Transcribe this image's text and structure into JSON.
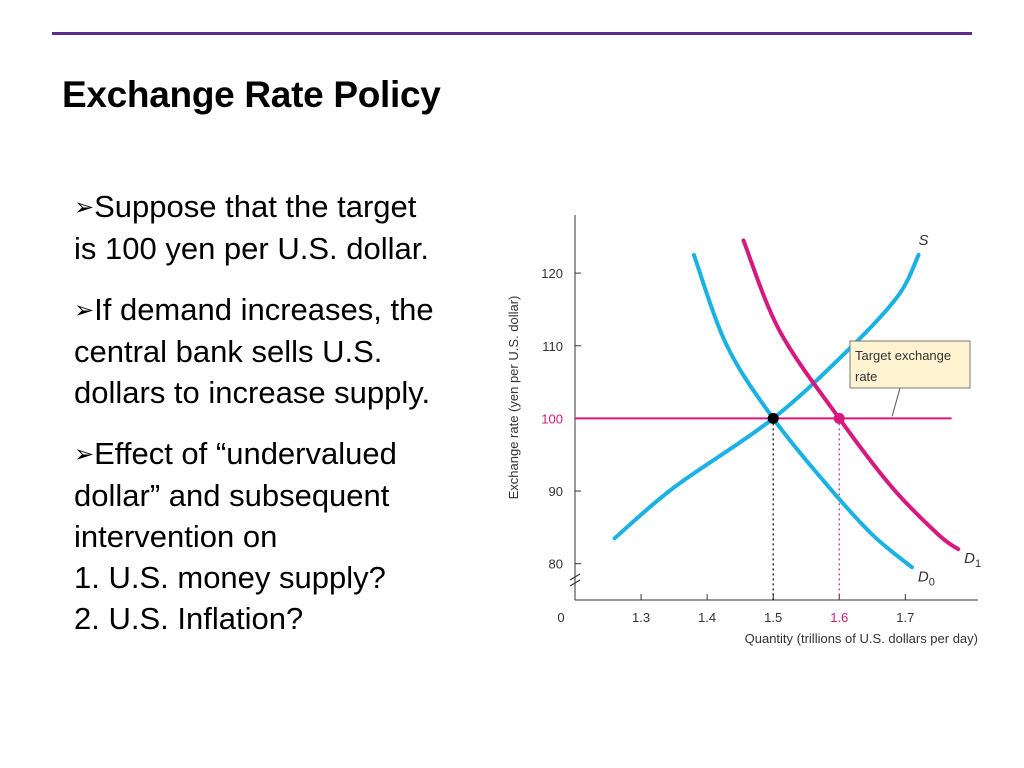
{
  "slide": {
    "title": "Exchange Rate Policy",
    "bullets": [
      {
        "marker": "➢",
        "lines": [
          "Suppose that the target",
          "is 100 yen per U.S. dollar."
        ]
      },
      {
        "marker": "➢",
        "lines": [
          "If demand increases, the",
          "central bank sells U.S.",
          "dollars to increase supply."
        ]
      },
      {
        "marker": "➢",
        "lines": [
          "Effect of “undervalued",
          "dollar” and subsequent",
          "intervention on",
          "1. U.S. money supply?",
          "2. U.S. Inflation?"
        ]
      }
    ]
  },
  "colors": {
    "rule": "#5b2d8e",
    "supply": "#1ab2e3",
    "demand0": "#1ab2e3",
    "demand1": "#d6197f",
    "target": "#d6197f",
    "callout_fill": "#fff3d2"
  },
  "chart_data": {
    "type": "line",
    "ylabel": "Exchange rate (yen per U.S. dollar)",
    "xlabel": "Quantity (trillions of U.S. dollars per day)",
    "x_origin_label": "0",
    "x_ticks": [
      1.3,
      1.4,
      1.5,
      1.6,
      1.7
    ],
    "x_tick_labels": [
      "1.3",
      "1.4",
      "1.5",
      "1.6",
      "1.7"
    ],
    "y_ticks": [
      80,
      90,
      100,
      110,
      120
    ],
    "y_tick_labels": [
      "80",
      "90",
      "100",
      "110",
      "120"
    ],
    "xlim": [
      1.2,
      1.81
    ],
    "ylim": [
      75,
      128
    ],
    "axis_break": true,
    "grid": false,
    "series": [
      {
        "name": "S",
        "label": "S",
        "sub": "",
        "color": "#1ab2e3",
        "points": [
          [
            1.26,
            83.5
          ],
          [
            1.35,
            90.5
          ],
          [
            1.5,
            100
          ],
          [
            1.62,
            110
          ],
          [
            1.69,
            117
          ],
          [
            1.72,
            122.5
          ]
        ]
      },
      {
        "name": "D0",
        "label": "D",
        "sub": "0",
        "color": "#1ab2e3",
        "points": [
          [
            1.38,
            122.5
          ],
          [
            1.43,
            110
          ],
          [
            1.5,
            100
          ],
          [
            1.58,
            91
          ],
          [
            1.65,
            84
          ],
          [
            1.71,
            79.5
          ]
        ]
      },
      {
        "name": "D1",
        "label": "D",
        "sub": "1",
        "color": "#d6197f",
        "points": [
          [
            1.455,
            124.5
          ],
          [
            1.51,
            112
          ],
          [
            1.6,
            100
          ],
          [
            1.68,
            90.5
          ],
          [
            1.75,
            84
          ],
          [
            1.78,
            82
          ]
        ]
      }
    ],
    "target_line": {
      "y": 100,
      "x_from": 1.2,
      "x_to": 1.77,
      "label": "Target exchange rate",
      "label_lines": [
        "Target exchange",
        "rate"
      ]
    },
    "points": [
      {
        "name": "equilibrium-initial",
        "x": 1.5,
        "y": 100,
        "color": "#000000"
      },
      {
        "name": "equilibrium-new",
        "x": 1.6,
        "y": 100,
        "color": "#d6197f"
      }
    ]
  }
}
